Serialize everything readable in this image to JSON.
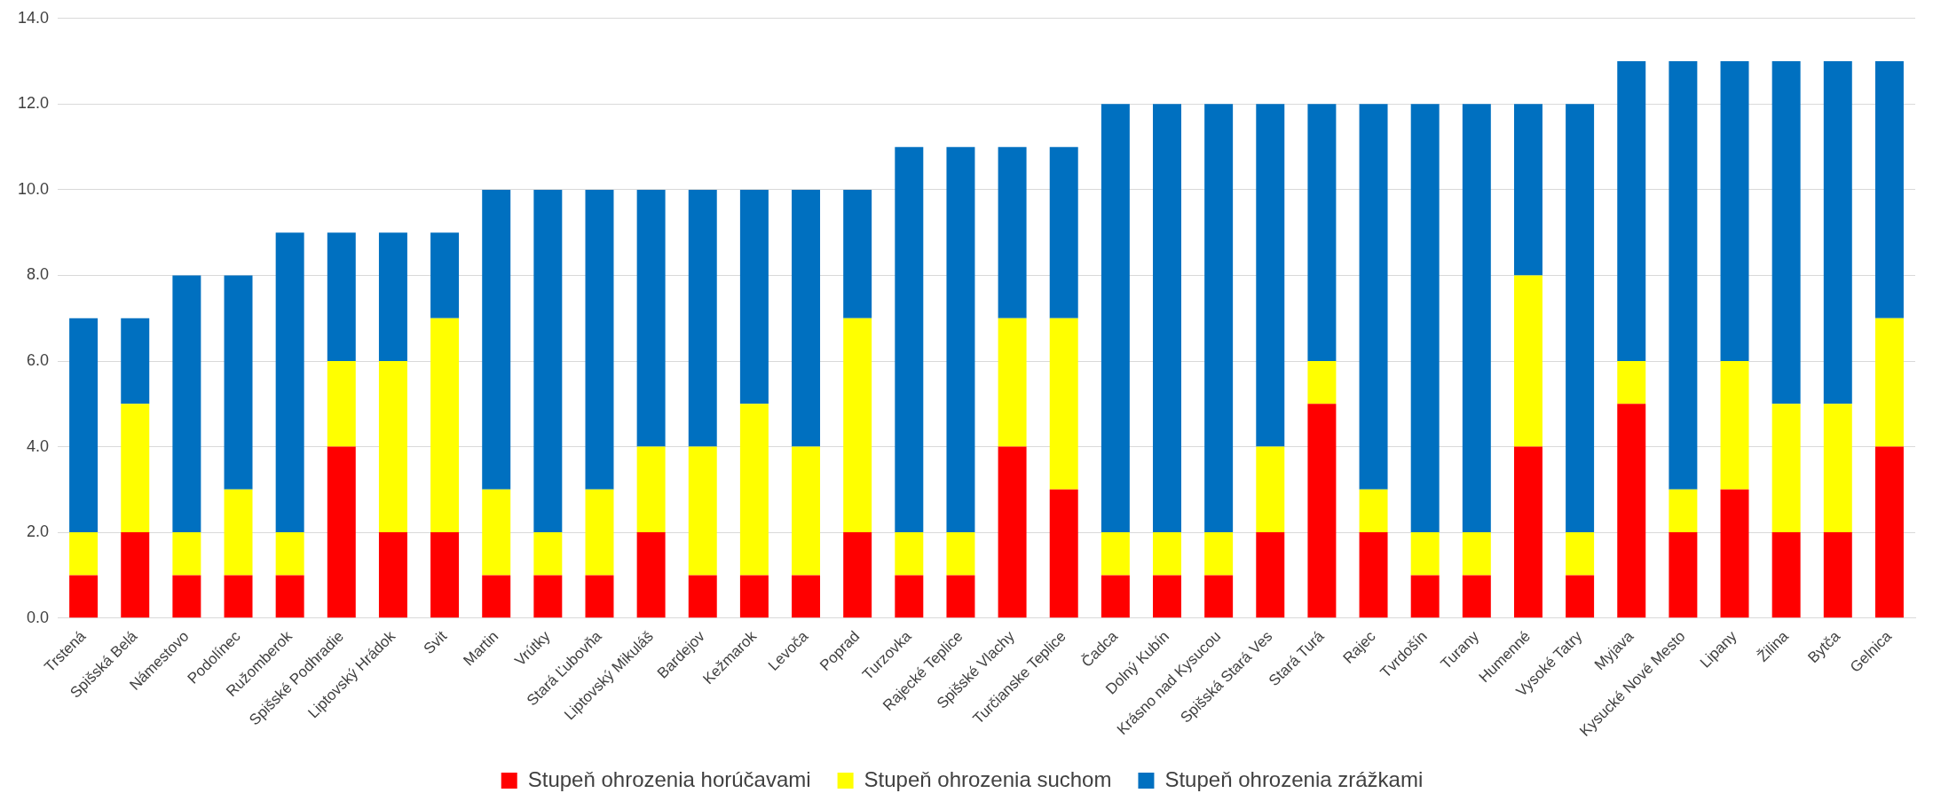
{
  "chart_data": {
    "type": "bar",
    "stacked": true,
    "categories": [
      "Trstená",
      "Spišská Belá",
      "Námestovo",
      "Podolínec",
      "Ružomberok",
      "Spišské Podhradie",
      "Liptovský Hrádok",
      "Svit",
      "Martin",
      "Vrútky",
      "Stará Ľubovňa",
      "Liptovský Mikuláš",
      "Bardejov",
      "Kežmarok",
      "Levoča",
      "Poprad",
      "Turzovka",
      "Rajecké Teplice",
      "Spišské Vlachy",
      "Turčianske Teplice",
      "Čadca",
      "Dolný Kubín",
      "Krásno nad Kysucou",
      "Spišská Stará Ves",
      "Stará Turá",
      "Rajec",
      "Tvrdošín",
      "Turany",
      "Humenné",
      "Vysoké Tatry",
      "Myjava",
      "Kysucké Nové Mesto",
      "Lipany",
      "Žilina",
      "Bytča",
      "Gelnica"
    ],
    "series": [
      {
        "name": "Stupeň ohrozenia horúčavami",
        "color": "#ff0000",
        "values": [
          1,
          2,
          1,
          1,
          1,
          4,
          2,
          2,
          1,
          1,
          1,
          2,
          1,
          1,
          1,
          2,
          1,
          1,
          4,
          3,
          1,
          1,
          1,
          2,
          5,
          2,
          1,
          1,
          4,
          1,
          5,
          2,
          3,
          2,
          2,
          4
        ]
      },
      {
        "name": "Stupeň ohrozenia suchom",
        "color": "#ffff00",
        "values": [
          1,
          3,
          1,
          2,
          1,
          2,
          4,
          5,
          2,
          1,
          2,
          2,
          3,
          4,
          3,
          5,
          1,
          1,
          3,
          4,
          1,
          1,
          1,
          2,
          1,
          1,
          1,
          1,
          4,
          1,
          1,
          1,
          3,
          3,
          3,
          3
        ]
      },
      {
        "name": "Stupeň ohrozenia zrážkami",
        "color": "#0070c0",
        "values": [
          5,
          2,
          6,
          5,
          7,
          3,
          3,
          2,
          7,
          8,
          7,
          6,
          6,
          5,
          6,
          3,
          9,
          9,
          4,
          4,
          10,
          10,
          10,
          8,
          6,
          9,
          10,
          10,
          4,
          10,
          7,
          10,
          7,
          8,
          8,
          6
        ]
      }
    ],
    "ylim": [
      0,
      14
    ],
    "yticks": [
      {
        "value": 0,
        "label": "0.0"
      },
      {
        "value": 2,
        "label": "2.0"
      },
      {
        "value": 4,
        "label": "4.0"
      },
      {
        "value": 6,
        "label": "6.0"
      },
      {
        "value": 8,
        "label": "8.0"
      },
      {
        "value": 10,
        "label": "10.0"
      },
      {
        "value": 12,
        "label": "12.0"
      },
      {
        "value": 14,
        "label": "14.0"
      }
    ],
    "grid": "y",
    "legend": "bottom"
  }
}
